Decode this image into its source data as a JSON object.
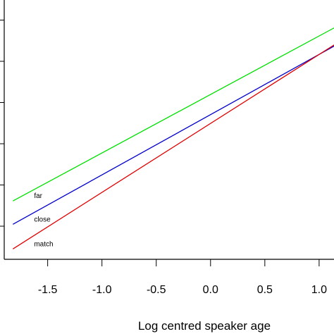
{
  "chart_data": {
    "type": "line",
    "title": "",
    "xlabel": "Log centred speaker age",
    "ylabel": "",
    "xlim": [
      -1.9,
      1.15
    ],
    "ylim": [
      0,
      1
    ],
    "x_ticks": [
      -1.5,
      -1.0,
      -0.5,
      0.0,
      0.5,
      1.0
    ],
    "x_tick_labels": [
      "-1.5",
      "-1.0",
      "-0.5",
      "0.0",
      "0.5",
      "1.0"
    ],
    "y_tick_count": 6,
    "grid": false,
    "series": [
      {
        "name": "far",
        "color": "#00e000",
        "x": [
          -1.82,
          1.15
        ],
        "y": [
          0.225,
          0.895
        ]
      },
      {
        "name": "close",
        "color": "#0000cc",
        "x": [
          -1.82,
          1.15
        ],
        "y": [
          0.135,
          0.825
        ]
      },
      {
        "name": "match",
        "color": "#e00000",
        "x": [
          -1.82,
          1.15
        ],
        "y": [
          0.04,
          0.83
        ]
      }
    ]
  }
}
